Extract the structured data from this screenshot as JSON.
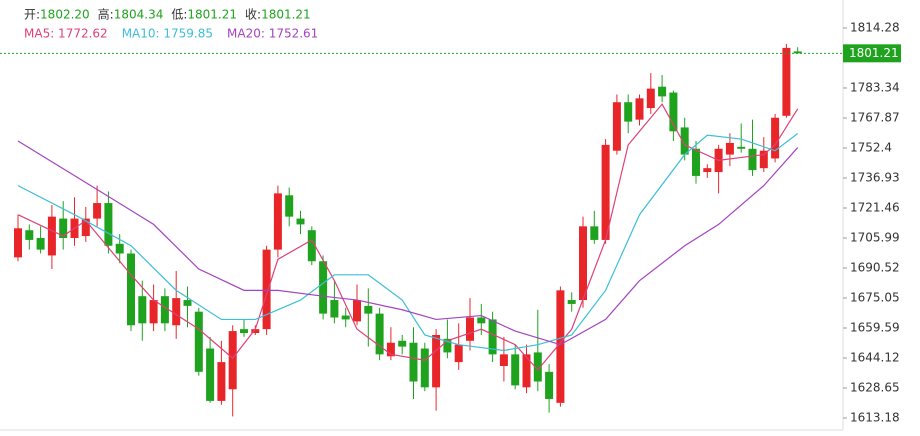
{
  "chart_data": {
    "type": "candlestick",
    "header": [
      {
        "label": "开:",
        "value": "1802.20"
      },
      {
        "label": "高:",
        "value": "1804.34"
      },
      {
        "label": "低:",
        "value": "1801.21"
      },
      {
        "label": "收:",
        "value": "1801.21"
      }
    ],
    "up_color": "#e8262a",
    "down_color": "#1fa31f",
    "ylim": [
      1607,
      1828.7
    ],
    "yticks": [
      1814.28,
      1783.34,
      1767.87,
      1752.4,
      1736.93,
      1721.46,
      1705.99,
      1690.52,
      1675.05,
      1659.59,
      1644.12,
      1628.65,
      1613.18
    ],
    "last_price": 1801.21,
    "last_price_label": "1801.21",
    "open": [
      1696,
      1710,
      1706,
      1697,
      1716,
      1706,
      1707,
      1716,
      1724,
      1703,
      1698,
      1676,
      1662,
      1676,
      1661,
      1674,
      1668,
      1649,
      1622,
      1628,
      1659,
      1657,
      1659,
      1700,
      1728,
      1716,
      1710,
      1694,
      1674,
      1666,
      1663,
      1671,
      1667,
      1645,
      1653,
      1652,
      1649,
      1629,
      1654,
      1642,
      1653,
      1665,
      1664,
      1640,
      1646,
      1629,
      1647,
      1637,
      1621,
      1674,
      1674,
      1712,
      1705,
      1751,
      1776,
      1767,
      1773,
      1784,
      1781,
      1763,
      1752,
      1740,
      1740,
      1749,
      1753,
      1752,
      1742,
      1747,
      1769,
      1802.2
    ],
    "high": [
      1718,
      1713,
      1712,
      1723,
      1725,
      1727,
      1722,
      1733,
      1730,
      1708,
      1700,
      1684,
      1682,
      1680,
      1689,
      1681,
      1670,
      1655,
      1653,
      1661,
      1664,
      1661,
      1702,
      1733,
      1732,
      1720,
      1712,
      1697,
      1684,
      1670,
      1682,
      1680,
      1670,
      1660,
      1656,
      1660,
      1652,
      1659,
      1664,
      1662,
      1675,
      1672,
      1668,
      1655,
      1651,
      1651,
      1669,
      1641,
      1681,
      1678,
      1717,
      1720,
      1757,
      1780,
      1780,
      1780,
      1791,
      1790,
      1782,
      1768,
      1756,
      1744,
      1754,
      1760,
      1765,
      1767,
      1758,
      1770,
      1806,
      1804.34
    ],
    "low": [
      1694,
      1700,
      1698,
      1690,
      1700,
      1702,
      1704,
      1712,
      1698,
      1693,
      1658,
      1653,
      1658,
      1658,
      1654,
      1660,
      1635,
      1621,
      1620,
      1614,
      1655,
      1656,
      1656,
      1696,
      1712,
      1708,
      1692,
      1664,
      1662,
      1660,
      1661,
      1650,
      1643,
      1643,
      1646,
      1623,
      1627,
      1617,
      1644,
      1638,
      1648,
      1656,
      1642,
      1632,
      1628,
      1626,
      1627,
      1616,
      1619,
      1668,
      1670,
      1703,
      1703,
      1749,
      1760,
      1764,
      1770,
      1776,
      1756,
      1746,
      1734,
      1737,
      1729,
      1743,
      1750,
      1738,
      1740,
      1745,
      1768,
      1801.21
    ],
    "close": [
      1711,
      1705,
      1700,
      1717,
      1706,
      1716,
      1716,
      1724,
      1702,
      1698,
      1661,
      1662,
      1674,
      1662,
      1675,
      1671,
      1637,
      1622,
      1642,
      1658,
      1657,
      1659,
      1700,
      1729,
      1717,
      1713,
      1694,
      1667,
      1665,
      1664,
      1674,
      1667,
      1646,
      1652,
      1650,
      1632,
      1629,
      1656,
      1647,
      1651,
      1665,
      1662,
      1646,
      1646,
      1630,
      1646,
      1632,
      1623,
      1679,
      1672,
      1712,
      1705,
      1754,
      1776,
      1766,
      1778,
      1783,
      1779,
      1761,
      1749,
      1738,
      1742,
      1752,
      1755,
      1752,
      1741,
      1751,
      1768,
      1804,
      1801.21
    ],
    "series": [
      {
        "name": "MA5: 1772.62",
        "color": "#e0407a",
        "x": [
          0,
          4,
          6,
          10,
          12,
          16,
          19,
          21,
          23,
          26,
          28,
          30,
          33,
          36,
          38,
          41,
          44,
          46,
          49,
          52,
          54,
          57,
          59,
          62,
          66,
          67,
          69
        ],
        "values": [
          1718,
          1707,
          1715,
          1687,
          1674,
          1659,
          1644,
          1659,
          1695,
          1705,
          1684,
          1659,
          1646,
          1643,
          1653,
          1659,
          1651,
          1638,
          1659,
          1705,
          1754,
          1775,
          1754,
          1746,
          1749,
          1754,
          1772.62
        ]
      },
      {
        "name": "MA10: 1759.85",
        "color": "#3cbfd8",
        "x": [
          0,
          5,
          10,
          14,
          18,
          21,
          25,
          28,
          31,
          34,
          36,
          39,
          43,
          46,
          49,
          52,
          55,
          59,
          61,
          64,
          67,
          69
        ],
        "values": [
          1733,
          1718,
          1702,
          1679,
          1664,
          1664,
          1674,
          1687,
          1687,
          1674,
          1656,
          1651,
          1648,
          1651,
          1656,
          1679,
          1718,
          1749,
          1759,
          1757,
          1751,
          1759.85
        ]
      },
      {
        "name": "MA20: 1752.61",
        "color": "#a443c0",
        "x": [
          0,
          7,
          12,
          16,
          20,
          23,
          27,
          30,
          34,
          37,
          41,
          44,
          48,
          52,
          55,
          59,
          62,
          66,
          69
        ],
        "values": [
          1756,
          1731,
          1713,
          1690,
          1679,
          1679,
          1676,
          1674,
          1669,
          1664,
          1666,
          1658,
          1651,
          1664,
          1684,
          1702,
          1713,
          1733,
          1752.61
        ]
      }
    ]
  }
}
